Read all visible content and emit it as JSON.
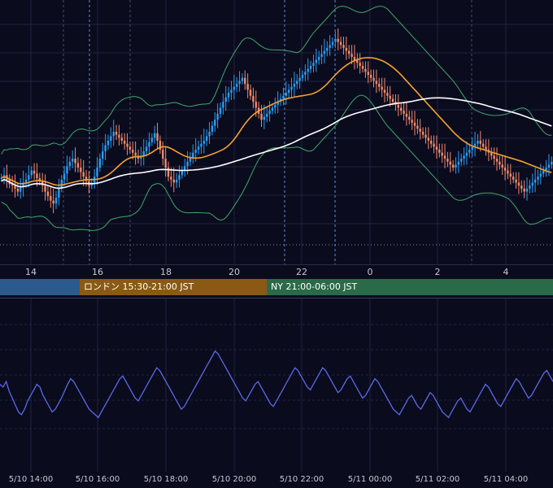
{
  "theme": {
    "background": "#0b0b1e",
    "grid": "#1f2340",
    "candle_up": "#2a9df4",
    "candle_down": "#f08a6a",
    "ma_short": "#f5a030",
    "ma_long": "#ffffff",
    "bollinger": "#3fa86a",
    "oscillator": "#5a6ae6",
    "vline_dashed": "#5a8fd0",
    "vline_gray": "#4a4e66"
  },
  "top_axis_ticks": [
    "14",
    "16",
    "18",
    "20",
    "22",
    "0",
    "2",
    "4"
  ],
  "sessions": [
    {
      "label": "",
      "color": "#2c5a8c"
    },
    {
      "label": "ロンドン 15:30-21:00 JST",
      "color": "#8a5a14"
    },
    {
      "label": "NY 21:00-06:00 JST",
      "color": "#2a6a48"
    }
  ],
  "bottom_axis_ticks": [
    "5/10 14:00",
    "5/10 16:00",
    "5/10 18:00",
    "5/10 20:00",
    "5/10 22:00",
    "5/11 00:00",
    "5/11 02:00",
    "5/11 04:00"
  ],
  "chart_data": [
    {
      "type": "candlestick",
      "x_unit": "hour (JST)",
      "x_ticks": [
        "14",
        "16",
        "18",
        "20",
        "22",
        "0",
        "2",
        "4"
      ],
      "overlays": [
        "moving-average-short",
        "moving-average-long",
        "bollinger-bands"
      ],
      "close_relative": [
        45,
        47,
        44,
        41,
        40,
        38,
        36,
        39,
        42,
        44,
        47,
        50,
        48,
        45,
        43,
        40,
        36,
        33,
        30,
        28,
        32,
        38,
        44,
        48,
        53,
        56,
        58,
        55,
        52,
        49,
        46,
        43,
        40,
        42,
        46,
        52,
        58,
        63,
        67,
        70,
        73,
        76,
        74,
        72,
        70,
        68,
        66,
        64,
        62,
        60,
        58,
        60,
        63,
        66,
        69,
        72,
        75,
        70,
        64,
        58,
        52,
        46,
        44,
        42,
        44,
        47,
        50,
        53,
        56,
        59,
        62,
        64,
        66,
        68,
        70,
        73,
        76,
        80,
        84,
        88,
        92,
        96,
        99,
        102,
        104,
        106,
        108,
        110,
        112,
        108,
        104,
        100,
        96,
        92,
        88,
        84,
        86,
        88,
        90,
        92,
        94,
        96,
        98,
        100,
        102,
        104,
        106,
        108,
        110,
        112,
        114,
        116,
        118,
        120,
        122,
        124,
        126,
        128,
        130,
        132,
        134,
        136,
        138,
        136,
        134,
        132,
        130,
        128,
        126,
        124,
        122,
        120,
        118,
        116,
        114,
        112,
        110,
        108,
        106,
        104,
        102,
        100,
        98,
        96,
        94,
        92,
        90,
        88,
        86,
        84,
        82,
        80,
        78,
        76,
        74,
        72,
        70,
        68,
        66,
        64,
        62,
        60,
        58,
        56,
        54,
        52,
        54,
        56,
        58,
        60,
        62,
        64,
        66,
        68,
        70,
        68,
        66,
        64,
        62,
        60,
        58,
        56,
        54,
        52,
        50,
        48,
        46,
        44,
        42,
        40,
        38,
        36,
        38,
        40,
        42,
        44,
        46,
        48,
        50,
        52,
        54,
        56
      ]
    },
    {
      "type": "line",
      "name": "",
      "x_ticks": [
        "5/10 14:00",
        "5/10 16:00",
        "5/10 18:00",
        "5/10 20:00",
        "5/10 22:00",
        "5/11 00:00",
        "5/11 02:00",
        "5/11 04:00"
      ],
      "values": [
        60,
        58,
        62,
        55,
        50,
        45,
        40,
        38,
        42,
        48,
        52,
        56,
        60,
        58,
        52,
        48,
        44,
        40,
        42,
        46,
        50,
        55,
        60,
        64,
        62,
        58,
        54,
        50,
        46,
        42,
        40,
        38,
        36,
        40,
        44,
        48,
        52,
        56,
        60,
        64,
        66,
        62,
        58,
        54,
        50,
        48,
        52,
        56,
        60,
        64,
        68,
        72,
        70,
        66,
        62,
        58,
        54,
        50,
        46,
        42,
        44,
        48,
        52,
        56,
        60,
        64,
        68,
        72,
        76,
        80,
        84,
        82,
        78,
        74,
        70,
        66,
        62,
        58,
        54,
        50,
        48,
        52,
        56,
        60,
        62,
        58,
        54,
        50,
        46,
        44,
        48,
        52,
        56,
        60,
        64,
        68,
        72,
        70,
        66,
        62,
        58,
        56,
        60,
        64,
        68,
        72,
        70,
        66,
        62,
        58,
        54,
        56,
        60,
        64,
        66,
        62,
        58,
        54,
        50,
        52,
        56,
        60,
        64,
        62,
        58,
        54,
        50,
        46,
        42,
        40,
        38,
        42,
        46,
        50,
        52,
        48,
        44,
        42,
        46,
        50,
        54,
        52,
        48,
        44,
        40,
        38,
        36,
        40,
        44,
        48,
        50,
        46,
        42,
        40,
        44,
        48,
        52,
        56,
        60,
        58,
        54,
        50,
        46,
        44,
        48,
        52,
        56,
        60,
        64,
        62,
        58,
        54,
        50,
        52,
        56,
        60,
        64,
        68,
        70,
        66,
        62
      ]
    }
  ]
}
